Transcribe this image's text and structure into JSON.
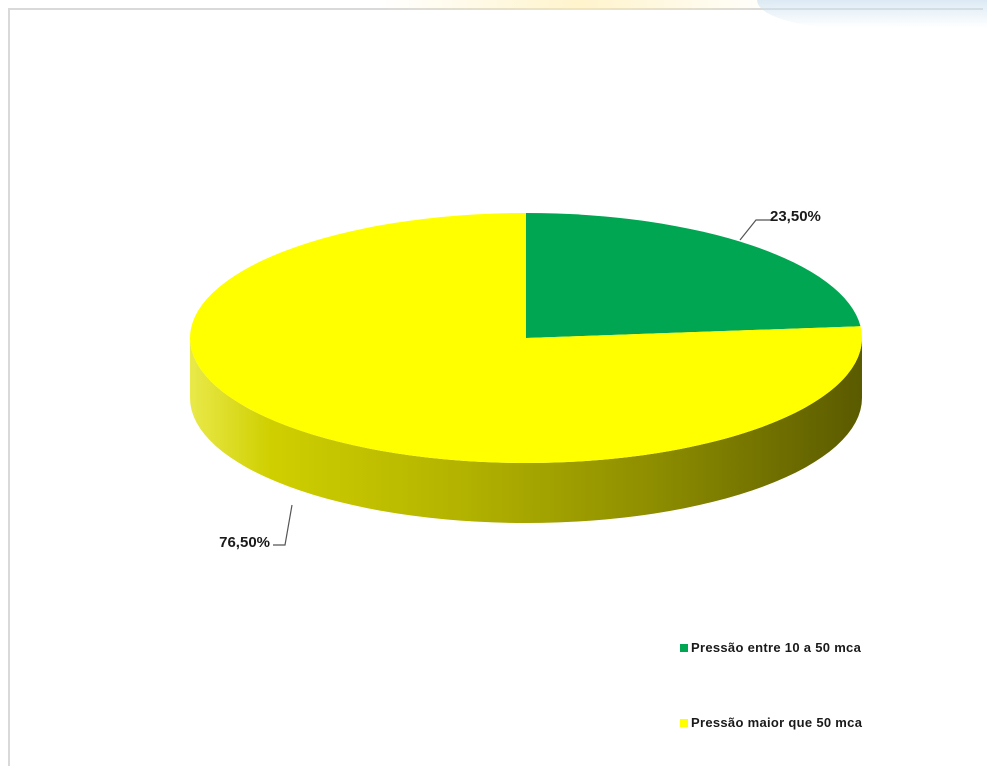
{
  "chart_data": {
    "type": "pie",
    "style": "3d",
    "categories": [
      "Pressão entre 10 a 50 mca",
      "Pressão maior que 50 mca"
    ],
    "values": [
      23.5,
      76.5
    ],
    "data_labels": [
      "23,50%",
      "76,50%"
    ],
    "colors": [
      "#00A651",
      "#FFFF00"
    ],
    "legend_position": "bottom-right",
    "legend": [
      {
        "label": "Pressão entre 10 a 50 mca",
        "color": "#00A651"
      },
      {
        "label": "Pressão maior que 50 mca",
        "color": "#FFFF00"
      }
    ],
    "title": ""
  }
}
